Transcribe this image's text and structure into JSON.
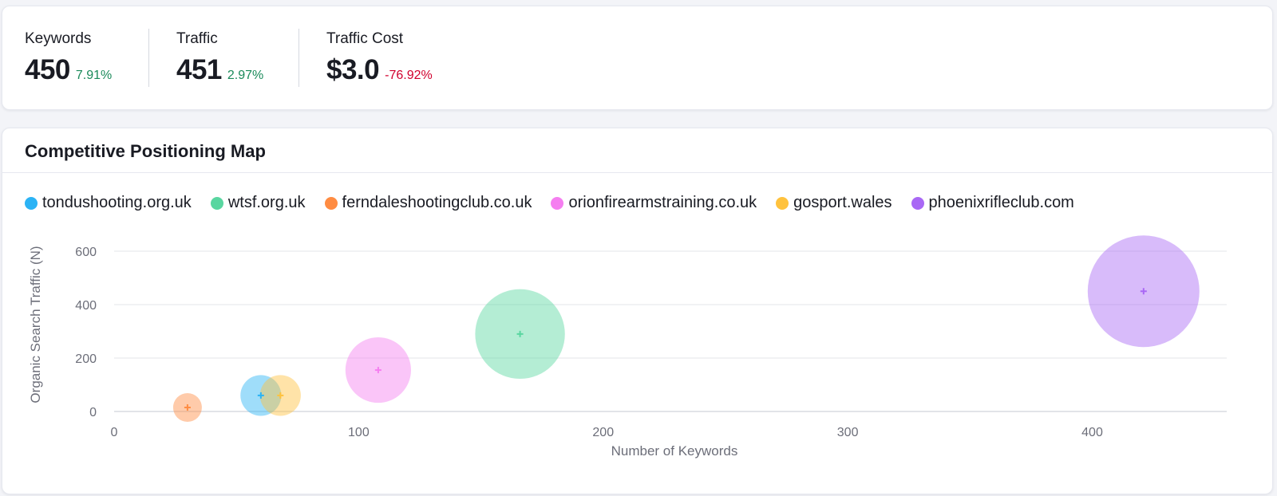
{
  "summary": {
    "metrics": [
      {
        "label": "Keywords",
        "value": "450",
        "change": "7.91%",
        "trend": "up"
      },
      {
        "label": "Traffic",
        "value": "451",
        "change": "2.97%",
        "trend": "up"
      },
      {
        "label": "Traffic Cost",
        "value": "$3.0",
        "change": "-76.92%",
        "trend": "down"
      }
    ]
  },
  "map": {
    "title": "Competitive Positioning Map"
  },
  "chart_data": {
    "type": "scatter",
    "xlabel": "Number of Keywords",
    "ylabel": "Organic Search Traffic (N)",
    "xlim": [
      0,
      455
    ],
    "ylim": [
      0,
      600
    ],
    "xticks": [
      0,
      100,
      200,
      300,
      400
    ],
    "yticks": [
      0,
      200,
      400,
      600
    ],
    "grid": true,
    "legend_position": "top-left",
    "series": [
      {
        "name": "tondushooting.org.uk",
        "color": "#2bb3f5",
        "x": 60,
        "y": 60,
        "size": 60
      },
      {
        "name": "wtsf.org.uk",
        "color": "#59d6a0",
        "x": 166,
        "y": 290,
        "size": 290
      },
      {
        "name": "ferndaleshootingclub.co.uk",
        "color": "#ff8c42",
        "x": 30,
        "y": 15,
        "size": 15
      },
      {
        "name": "orionfirearmstraining.co.uk",
        "color": "#f57ef0",
        "x": 108,
        "y": 155,
        "size": 155
      },
      {
        "name": "gosport.wales",
        "color": "#ffc23d",
        "x": 68,
        "y": 60,
        "size": 60
      },
      {
        "name": "phoenixrifleclub.com",
        "color": "#a968f5",
        "x": 421,
        "y": 450,
        "size": 450
      }
    ]
  }
}
